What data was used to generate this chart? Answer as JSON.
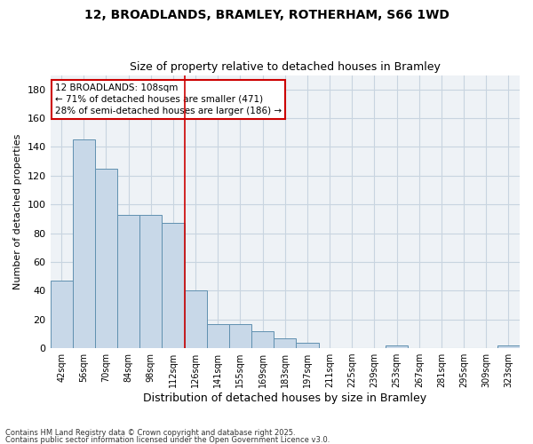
{
  "title1": "12, BROADLANDS, BRAMLEY, ROTHERHAM, S66 1WD",
  "title2": "Size of property relative to detached houses in Bramley",
  "xlabel": "Distribution of detached houses by size in Bramley",
  "ylabel": "Number of detached properties",
  "categories": [
    "42sqm",
    "56sqm",
    "70sqm",
    "84sqm",
    "98sqm",
    "112sqm",
    "126sqm",
    "141sqm",
    "155sqm",
    "169sqm",
    "183sqm",
    "197sqm",
    "211sqm",
    "225sqm",
    "239sqm",
    "253sqm",
    "267sqm",
    "281sqm",
    "295sqm",
    "309sqm",
    "323sqm"
  ],
  "values": [
    47,
    145,
    125,
    93,
    93,
    87,
    40,
    17,
    17,
    12,
    7,
    4,
    0,
    0,
    0,
    2,
    0,
    0,
    0,
    0,
    2
  ],
  "bar_color": "#c8d8e8",
  "bar_edge_color": "#6090b0",
  "vline_color": "#cc0000",
  "vline_x": 5.5,
  "annotation_text": "12 BROADLANDS: 108sqm\n← 71% of detached houses are smaller (471)\n28% of semi-detached houses are larger (186) →",
  "annotation_box_color": "#ffffff",
  "annotation_box_edge": "#cc0000",
  "ylim": [
    0,
    190
  ],
  "yticks": [
    0,
    20,
    40,
    60,
    80,
    100,
    120,
    140,
    160,
    180
  ],
  "footer1": "Contains HM Land Registry data © Crown copyright and database right 2025.",
  "footer2": "Contains public sector information licensed under the Open Government Licence v3.0.",
  "grid_color": "#c8d4e0",
  "background_color": "#eef2f6"
}
